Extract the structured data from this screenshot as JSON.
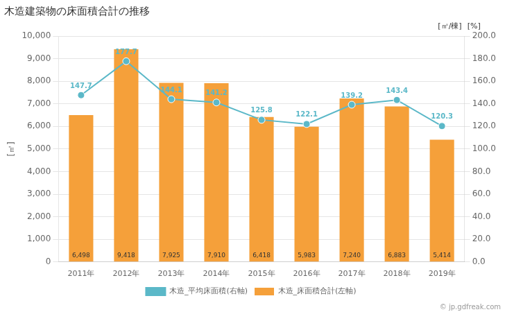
{
  "chart_data": {
    "type": "bar",
    "title": "木造建築物の床面積合計の推移",
    "categories": [
      "2011年",
      "2012年",
      "2013年",
      "2014年",
      "2015年",
      "2016年",
      "2017年",
      "2018年",
      "2019年"
    ],
    "series": [
      {
        "name": "木造_床面積合計(左軸)",
        "type": "bar",
        "color": "#F5A03A",
        "values": [
          6498,
          9418,
          7925,
          7910,
          6418,
          5983,
          7240,
          6883,
          5414
        ],
        "value_labels": [
          "6,498",
          "9,418",
          "7,925",
          "7,910",
          "6,418",
          "5,983",
          "7,240",
          "6,883",
          "5,414"
        ]
      },
      {
        "name": "木造_平均床面積(右軸)",
        "type": "line",
        "axis": "y2",
        "color": "#5BB8C8",
        "marker": "circle",
        "values": [
          147.7,
          177.7,
          144.1,
          141.2,
          125.8,
          122.1,
          139.2,
          143.4,
          120.3
        ]
      }
    ],
    "ylabel": "[㎡]",
    "y2label": "[㎡/棟]",
    "annotations": [
      "[%]",
      "© jp.gdfreak.com"
    ],
    "ylim": [
      0,
      10000
    ],
    "yticks": [
      0,
      {
        "value": 1000,
        "label": "1,000"
      },
      {
        "value": 2000,
        "label": "2,000"
      },
      {
        "value": 3000,
        "label": "3,000"
      },
      {
        "value": 4000,
        "label": "4,000"
      },
      {
        "value": 5000,
        "label": "5,000"
      },
      {
        "value": 6000,
        "label": "6,000"
      },
      {
        "value": 7000,
        "label": "7,000"
      },
      {
        "value": 8000,
        "label": "8,000"
      },
      {
        "value": 9000,
        "label": "9,000"
      },
      {
        "value": 10000,
        "label": "10,000"
      }
    ],
    "y2lim": [
      0,
      200.0
    ],
    "y2ticks": [
      {
        "value": 0,
        "label": "0.0"
      },
      {
        "value": 20,
        "label": "20.0"
      },
      {
        "value": 40,
        "label": "40.0"
      },
      {
        "value": 60,
        "label": "60.0"
      },
      {
        "value": 80,
        "label": "80.0"
      },
      {
        "value": 100,
        "label": "100.0"
      },
      {
        "value": 120,
        "label": "120.0"
      },
      {
        "value": 140,
        "label": "140.0"
      },
      {
        "value": 160,
        "label": "160.0"
      },
      {
        "value": 180,
        "label": "180.0"
      },
      {
        "value": 200,
        "label": "200.0"
      }
    ],
    "grid": true,
    "legend": "bottom",
    "data_labels": true
  }
}
